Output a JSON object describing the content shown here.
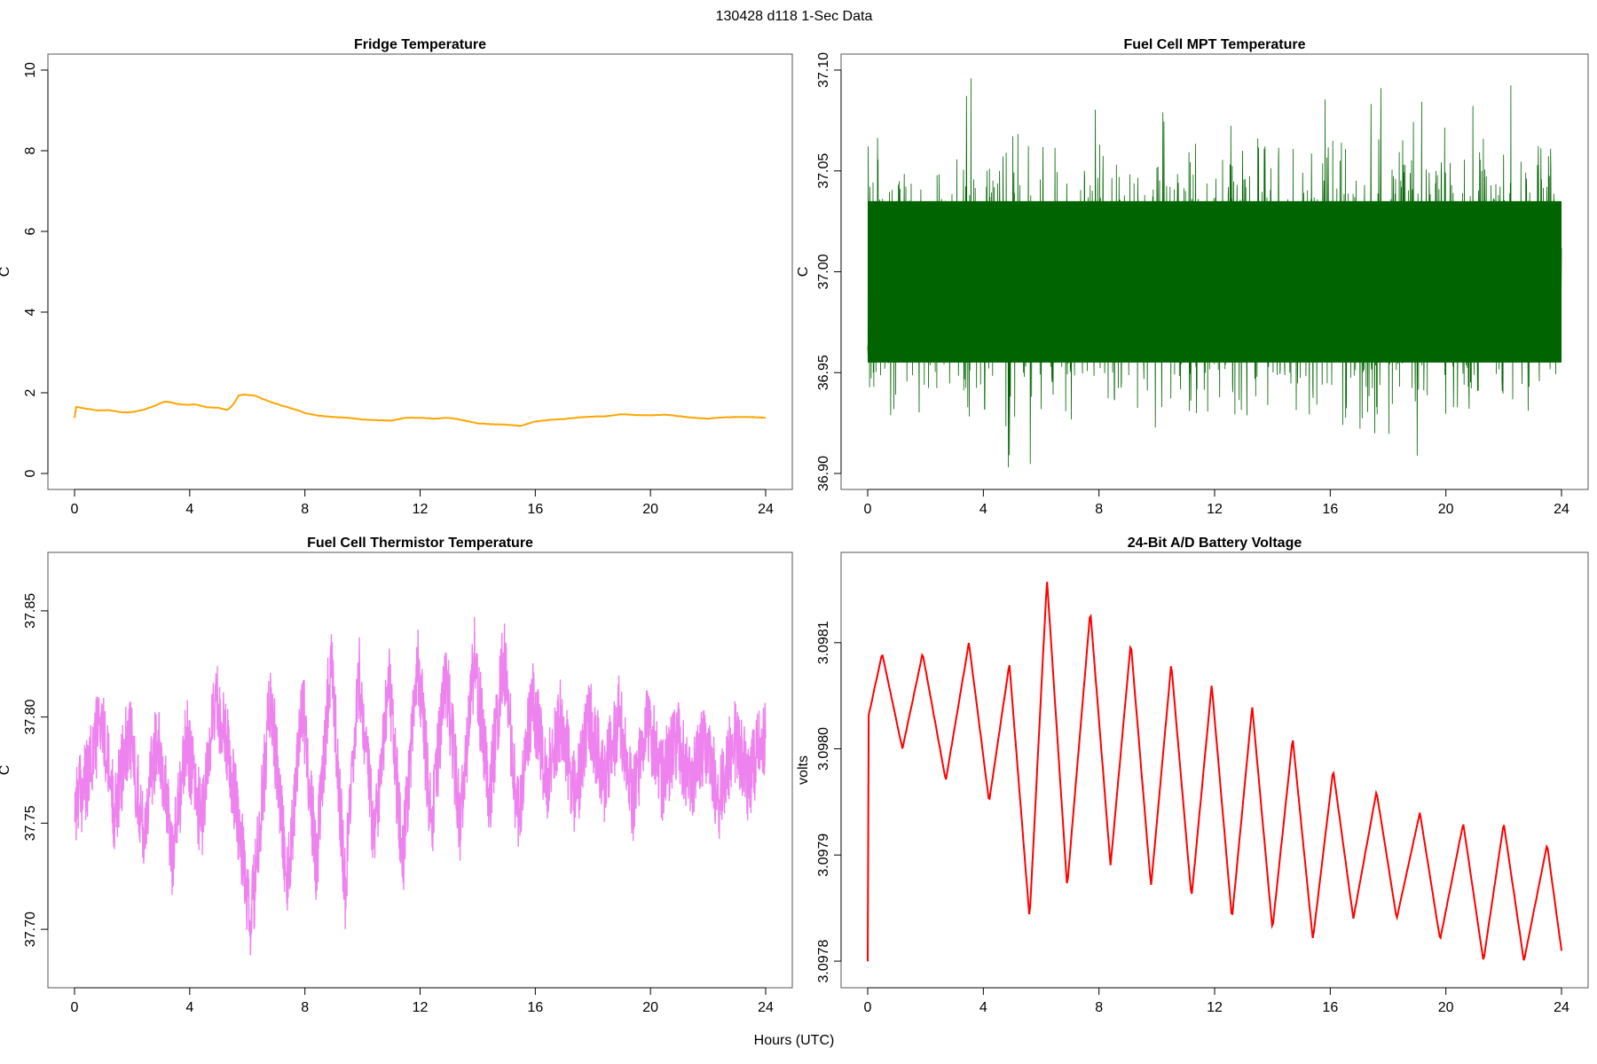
{
  "figure": {
    "title": "130428   d118   1-Sec Data",
    "xlabel": "Hours (UTC)"
  },
  "chart_data": [
    {
      "type": "line",
      "title": "Fridge Temperature",
      "ylabel": "C",
      "color": "#ffa500",
      "xlim": [
        0,
        24
      ],
      "ylim": [
        0,
        10
      ],
      "xticks": [
        0,
        4,
        8,
        12,
        16,
        20,
        24
      ],
      "yticks": [
        0,
        2,
        4,
        6,
        8,
        10
      ],
      "ytick_labels": [
        "0",
        "2",
        "4",
        "6",
        "8",
        "10"
      ],
      "x": [
        0,
        0.05,
        0.3,
        0.8,
        1.2,
        1.6,
        2.0,
        2.4,
        2.8,
        3.1,
        3.3,
        3.6,
        3.9,
        4.2,
        4.6,
        5.0,
        5.3,
        5.5,
        5.7,
        5.9,
        6.3,
        6.7,
        7.2,
        7.7,
        8.0,
        8.5,
        9.0,
        9.5,
        10.0,
        10.5,
        11.0,
        11.5,
        12.0,
        12.5,
        13.0,
        13.5,
        14.0,
        14.5,
        15.0,
        15.5,
        16.0,
        16.5,
        17.0,
        17.5,
        18.0,
        18.5,
        19.0,
        19.5,
        20.0,
        20.5,
        21.0,
        21.5,
        22.0,
        22.5,
        23.0,
        23.5,
        24.0
      ],
      "values": [
        1.38,
        1.65,
        1.62,
        1.56,
        1.57,
        1.52,
        1.52,
        1.58,
        1.68,
        1.78,
        1.77,
        1.72,
        1.7,
        1.71,
        1.64,
        1.63,
        1.57,
        1.7,
        1.93,
        1.96,
        1.92,
        1.8,
        1.68,
        1.58,
        1.5,
        1.43,
        1.4,
        1.38,
        1.34,
        1.32,
        1.31,
        1.38,
        1.38,
        1.36,
        1.38,
        1.32,
        1.24,
        1.22,
        1.21,
        1.18,
        1.29,
        1.33,
        1.35,
        1.39,
        1.41,
        1.42,
        1.47,
        1.45,
        1.44,
        1.46,
        1.42,
        1.38,
        1.36,
        1.39,
        1.4,
        1.4,
        1.38
      ]
    },
    {
      "type": "line",
      "title": "Fuel Cell MPT Temperature",
      "ylabel": "C",
      "color": "#006400",
      "xlim": [
        0,
        24
      ],
      "ylim": [
        36.9,
        37.1
      ],
      "xticks": [
        0,
        4,
        8,
        12,
        16,
        20,
        24
      ],
      "yticks": [
        36.9,
        36.95,
        37.0,
        37.05,
        37.1
      ],
      "ytick_labels": [
        "36.90",
        "36.95",
        "37.00",
        "37.05",
        "37.10"
      ],
      "baseline": 36.995,
      "band": [
        36.955,
        37.035
      ],
      "range": [
        36.9,
        37.097
      ]
    },
    {
      "type": "line",
      "title": "Fuel Cell Thermistor Temperature",
      "ylabel": "C",
      "color": "#ee82ee",
      "xlim": [
        0,
        24
      ],
      "ylim": [
        37.68,
        37.87
      ],
      "xticks": [
        0,
        4,
        8,
        12,
        16,
        20,
        24
      ],
      "yticks": [
        37.7,
        37.75,
        37.8,
        37.85
      ],
      "ytick_labels": [
        "37.70",
        "37.75",
        "37.80",
        "37.85"
      ],
      "x": [
        0,
        0.45,
        0.9,
        1.4,
        1.9,
        2.4,
        2.9,
        3.4,
        3.9,
        4.4,
        4.9,
        5.4,
        5.8,
        6.1,
        6.4,
        6.8,
        7.4,
        7.9,
        8.4,
        8.9,
        9.4,
        9.9,
        10.4,
        10.9,
        11.4,
        11.9,
        12.4,
        12.9,
        13.4,
        13.9,
        14.4,
        14.9,
        15.4,
        15.9,
        16.4,
        16.9,
        17.4,
        17.9,
        18.4,
        18.9,
        19.4,
        19.9,
        20.4,
        20.9,
        21.4,
        21.9,
        22.4,
        22.9,
        23.4,
        23.9,
        24.0
      ],
      "values": [
        37.76,
        37.77,
        37.8,
        37.755,
        37.795,
        37.745,
        37.795,
        37.735,
        37.79,
        37.75,
        37.81,
        37.78,
        37.74,
        37.7,
        37.74,
        37.81,
        37.72,
        37.81,
        37.73,
        37.83,
        37.72,
        37.82,
        37.74,
        37.82,
        37.73,
        37.83,
        37.75,
        37.82,
        37.75,
        37.83,
        37.76,
        37.83,
        37.75,
        37.81,
        37.77,
        37.8,
        37.76,
        37.8,
        37.77,
        37.8,
        37.76,
        37.8,
        37.77,
        37.79,
        37.77,
        37.79,
        37.76,
        37.79,
        37.77,
        37.79,
        37.79
      ],
      "spread": 0.02
    },
    {
      "type": "line",
      "title": "24-Bit A/D Battery Voltage",
      "ylabel": "volts",
      "color": "#ff0000",
      "xlim": [
        0,
        24
      ],
      "ylim": [
        3.09779,
        3.09817
      ],
      "xticks": [
        0,
        4,
        8,
        12,
        16,
        20,
        24
      ],
      "yticks": [
        3.0978,
        3.0979,
        3.098,
        3.0981
      ],
      "ytick_labels": [
        "3.0978",
        "3.0979",
        "3.0980",
        "3.0981"
      ],
      "x": [
        0,
        0.02,
        0.5,
        1.2,
        1.9,
        2.7,
        3.5,
        4.2,
        4.9,
        5.6,
        6.2,
        6.9,
        7.7,
        8.4,
        9.1,
        9.8,
        10.5,
        11.2,
        11.9,
        12.6,
        13.3,
        14.0,
        14.7,
        15.4,
        16.1,
        16.8,
        17.6,
        18.3,
        19.1,
        19.8,
        20.6,
        21.3,
        22.0,
        22.7,
        23.5,
        24.0
      ],
      "values": [
        3.0978,
        3.09803,
        3.09809,
        3.098,
        3.09809,
        3.09797,
        3.0981,
        3.09795,
        3.09808,
        3.09784,
        3.09816,
        3.09787,
        3.09813,
        3.09789,
        3.0981,
        3.09787,
        3.09808,
        3.09786,
        3.09806,
        3.09784,
        3.09804,
        3.09783,
        3.09801,
        3.09782,
        3.09798,
        3.09784,
        3.09796,
        3.09784,
        3.09794,
        3.09782,
        3.09793,
        3.0978,
        3.09793,
        3.0978,
        3.09791,
        3.09781
      ]
    }
  ]
}
